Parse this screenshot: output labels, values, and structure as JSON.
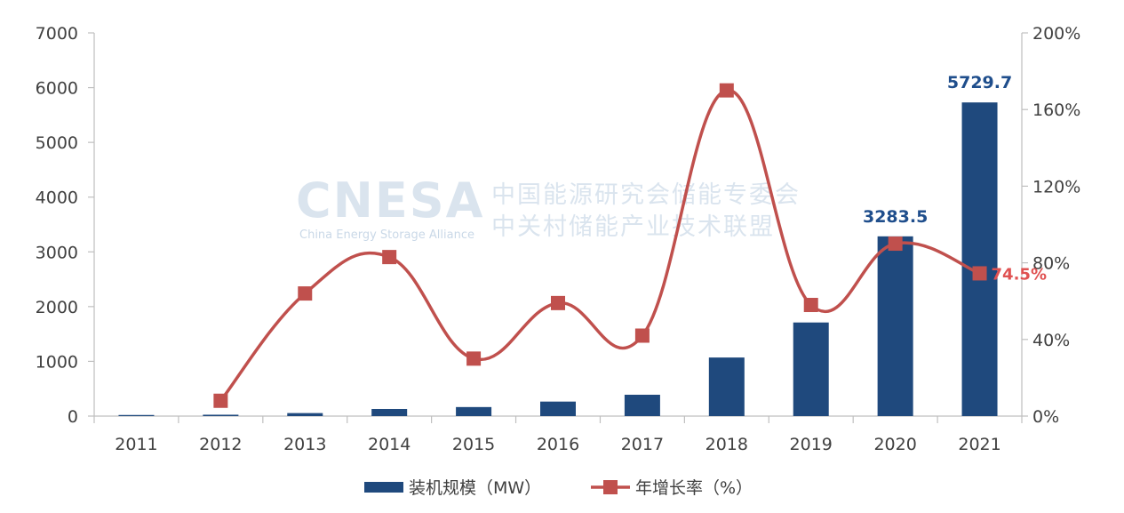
{
  "watermark": {
    "logo": "CNESA",
    "subtitle": "China Energy Storage Alliance",
    "line1": "中国能源研究会储能专委会",
    "line2": "中关村储能产业技术联盟"
  },
  "chart_data": {
    "type": "bar",
    "categories": [
      "2011",
      "2012",
      "2013",
      "2014",
      "2015",
      "2016",
      "2017",
      "2018",
      "2019",
      "2020",
      "2021"
    ],
    "series": [
      {
        "name": "装机规模（MW）",
        "type": "bar",
        "axis": "left",
        "color": "#1F497D",
        "values": [
          20,
          25,
          55,
          130,
          165,
          265,
          390,
          1070,
          1710,
          3283.5,
          5729.7
        ]
      },
      {
        "name": "年增长率（%）",
        "type": "line",
        "axis": "right",
        "color": "#C0504D",
        "values": [
          null,
          8,
          64,
          83,
          30,
          59,
          42,
          170,
          58,
          90,
          74.5
        ]
      }
    ],
    "y_left": {
      "min": 0,
      "max": 7000,
      "ticks": [
        "0",
        "1000",
        "2000",
        "3000",
        "4000",
        "5000",
        "6000",
        "7000"
      ]
    },
    "y_right": {
      "min": 0,
      "max": 200,
      "ticks": [
        "0%",
        "40%",
        "80%",
        "120%",
        "160%",
        "200%"
      ]
    },
    "data_labels": [
      {
        "series": 0,
        "index": 9,
        "text": "3283.5"
      },
      {
        "series": 0,
        "index": 10,
        "text": "5729.7"
      },
      {
        "series": 1,
        "index": 10,
        "text": "74.5%"
      }
    ],
    "legend": {
      "position": "bottom",
      "items": [
        "装机规模（MW）",
        "年增长率（%）"
      ]
    },
    "grid": false
  }
}
